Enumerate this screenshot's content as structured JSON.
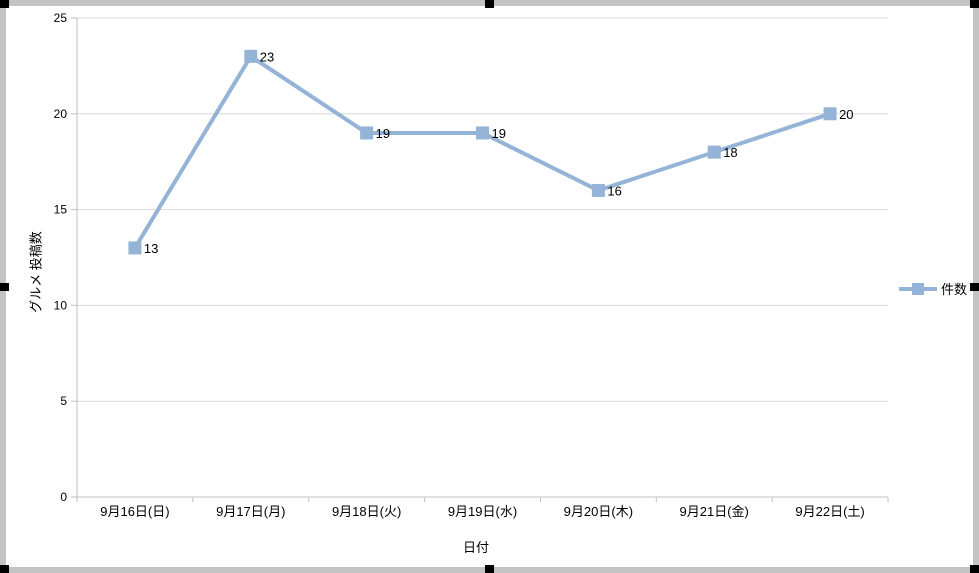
{
  "frame": {
    "border_color": "#c3c3c3",
    "handle_color": "#000000",
    "background": "#ffffff"
  },
  "chart_data": {
    "type": "line",
    "title": "",
    "categories": [
      "9月16日(日)",
      "9月17日(月)",
      "9月18日(火)",
      "9月19日(水)",
      "9月20日(木)",
      "9月21日(金)",
      "9月22日(土)"
    ],
    "series": [
      {
        "name": "件数",
        "values": [
          13,
          23,
          19,
          19,
          16,
          18,
          20
        ],
        "color": "#95B3D7"
      }
    ],
    "data_labels": [
      "13",
      "23",
      "19",
      "19",
      "16",
      "18",
      "20"
    ],
    "xlabel": "日付",
    "ylabel": "グルメ 投稿数",
    "ylim": [
      0,
      25
    ],
    "yticks": [
      0,
      5,
      10,
      15,
      20,
      25
    ],
    "grid": true,
    "legend_position": "right",
    "colors": {
      "gridline": "#D9D9D9",
      "axis": "#BFBFBF",
      "text": "#000000"
    }
  }
}
